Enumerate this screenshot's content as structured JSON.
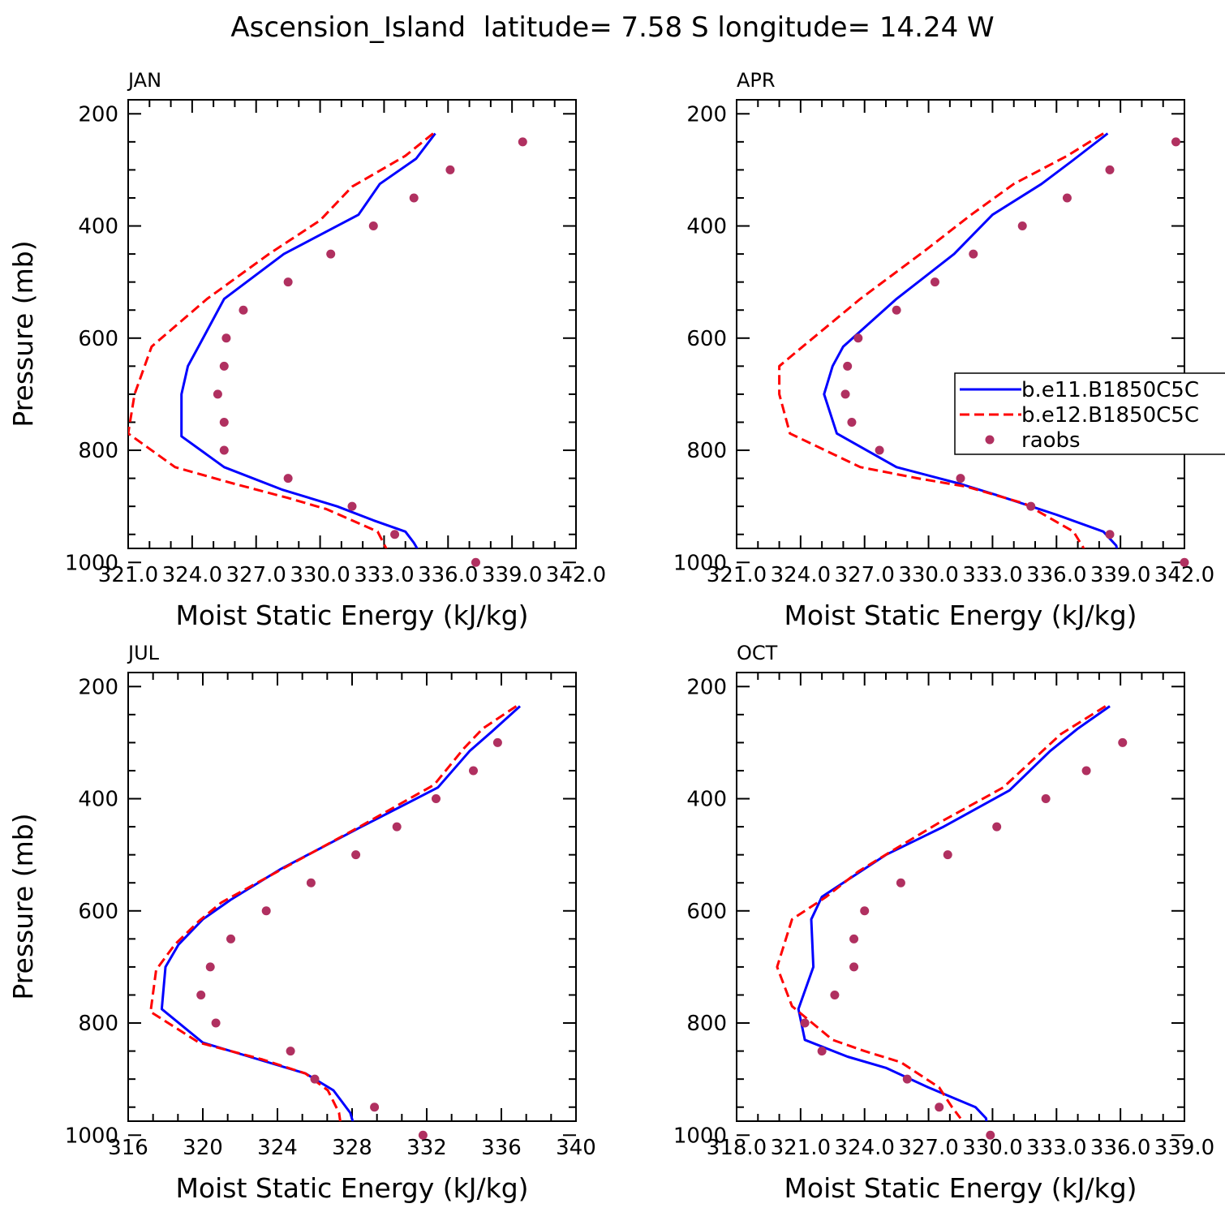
{
  "figure": {
    "title": "Ascension_Island  latitude= 7.58 S longitude= 14.24 W"
  },
  "legend": {
    "entries": [
      {
        "label": "b.e11.B1850C5C",
        "color": "#0000ff",
        "style": "solid"
      },
      {
        "label": "b.e12.B1850C5C",
        "color": "#ff0000",
        "style": "dashed"
      },
      {
        "label": "raobs",
        "color": "#b03060",
        "style": "dots"
      }
    ]
  },
  "chart_data": [
    {
      "type": "line",
      "panel_label": "JAN",
      "xlabel": "Moist Static Energy (kJ/kg)",
      "ylabel": "Pressure (mb)",
      "xlim": [
        321,
        342
      ],
      "ylim": [
        1000,
        200
      ],
      "xtick_labels": [
        "321.0",
        "324.0",
        "327.0",
        "330.0",
        "333.0",
        "336.0",
        "339.0",
        "342.0"
      ],
      "ytick_labels": [
        "200",
        "400",
        "600",
        "800",
        "1000"
      ],
      "series": [
        {
          "name": "b.e11.B1850C5C",
          "x": [
            335.4,
            334.5,
            332.8,
            331.8,
            328.3,
            325.5,
            324.3,
            323.8,
            323.5,
            323.5,
            325.5,
            328.2,
            330.8,
            332.5,
            334.0,
            334.4,
            335.0
          ],
          "y": [
            235,
            280,
            325,
            380,
            450,
            530,
            615,
            650,
            700,
            775,
            830,
            870,
            900,
            925,
            945,
            965,
            1005
          ]
        },
        {
          "name": "b.e12.B1850C5C",
          "x": [
            335.3,
            334.0,
            331.5,
            330.0,
            327.6,
            324.7,
            322.1,
            321.3,
            321.0,
            323.2,
            326.0,
            328.5,
            330.3,
            332.7,
            333.1,
            333.3
          ],
          "y": [
            235,
            275,
            330,
            390,
            450,
            530,
            615,
            700,
            770,
            830,
            860,
            885,
            905,
            945,
            975,
            1007
          ]
        },
        {
          "name": "raobs",
          "x": [
            339.5,
            336.1,
            334.4,
            332.5,
            330.5,
            328.5,
            326.4,
            325.6,
            325.5,
            325.2,
            325.5,
            325.5,
            328.5,
            331.5,
            333.5,
            337.3
          ],
          "y": [
            250,
            300,
            350,
            400,
            450,
            500,
            550,
            600,
            650,
            700,
            750,
            800,
            850,
            900,
            950,
            1000
          ]
        }
      ]
    },
    {
      "type": "line",
      "panel_label": "APR",
      "xlabel": "Moist Static Energy (kJ/kg)",
      "ylabel": "",
      "xlim": [
        321,
        342
      ],
      "ylim": [
        1000,
        200
      ],
      "xtick_labels": [
        "321.0",
        "324.0",
        "327.0",
        "330.0",
        "333.0",
        "336.0",
        "339.0",
        "342.0"
      ],
      "ytick_labels": [
        "200",
        "400",
        "600",
        "800",
        "1000"
      ],
      "series": [
        {
          "name": "b.e11.B1850C5C",
          "x": [
            338.4,
            336.7,
            335.3,
            333.0,
            331.2,
            328.5,
            326.0,
            325.5,
            325.1,
            325.7,
            328.5,
            331.5,
            333.2,
            336.0,
            338.2,
            338.8,
            339.0
          ],
          "y": [
            235,
            285,
            325,
            380,
            450,
            530,
            615,
            650,
            700,
            770,
            830,
            860,
            880,
            915,
            945,
            970,
            1005
          ]
        },
        {
          "name": "b.e12.B1850C5C",
          "x": [
            338.2,
            336.5,
            334.0,
            332.0,
            329.8,
            326.8,
            324.1,
            323.0,
            323.0,
            323.5,
            326.8,
            329.5,
            331.8,
            334.5,
            336.8,
            337.2,
            337.8
          ],
          "y": [
            235,
            275,
            325,
            380,
            445,
            530,
            615,
            650,
            700,
            770,
            830,
            850,
            865,
            895,
            945,
            970,
            1007
          ]
        },
        {
          "name": "raobs",
          "x": [
            341.6,
            338.5,
            336.5,
            334.4,
            332.1,
            330.3,
            328.5,
            326.7,
            326.2,
            326.1,
            326.4,
            327.7,
            331.5,
            334.8,
            338.5,
            342.0
          ],
          "y": [
            250,
            300,
            350,
            400,
            450,
            500,
            550,
            600,
            650,
            700,
            750,
            800,
            850,
            900,
            950,
            1000
          ]
        }
      ]
    },
    {
      "type": "line",
      "panel_label": "JUL",
      "xlabel": "Moist Static Energy (kJ/kg)",
      "ylabel": "Pressure (mb)",
      "xlim": [
        316,
        340
      ],
      "ylim": [
        1000,
        200
      ],
      "xtick_labels": [
        "316",
        "320",
        "324",
        "328",
        "332",
        "336",
        "340"
      ],
      "ytick_labels": [
        "200",
        "400",
        "600",
        "800",
        "1000"
      ],
      "series": [
        {
          "name": "b.e11.B1850C5C",
          "x": [
            337.0,
            335.5,
            334.3,
            332.6,
            328.5,
            324.2,
            321.5,
            320.0,
            318.7,
            318.0,
            317.8,
            320.0,
            323.0,
            325.5,
            327.0,
            327.9,
            328.3
          ],
          "y": [
            235,
            280,
            315,
            380,
            450,
            525,
            580,
            615,
            660,
            700,
            775,
            835,
            865,
            890,
            920,
            960,
            1005
          ]
        },
        {
          "name": "b.e12.B1850C5C",
          "x": [
            336.8,
            335.0,
            334.0,
            332.4,
            328.4,
            324.0,
            321.0,
            319.8,
            318.5,
            317.5,
            317.2,
            319.8,
            323.2,
            325.5,
            326.7,
            327.3,
            327.5
          ],
          "y": [
            235,
            275,
            310,
            375,
            450,
            530,
            585,
            618,
            660,
            705,
            780,
            835,
            865,
            890,
            920,
            960,
            1007
          ]
        },
        {
          "name": "raobs",
          "x": [
            335.8,
            334.5,
            332.5,
            330.4,
            328.2,
            325.8,
            323.4,
            321.5,
            320.4,
            319.9,
            320.7,
            324.7,
            326.0,
            329.2,
            331.8
          ],
          "y": [
            300,
            350,
            400,
            450,
            500,
            550,
            600,
            650,
            700,
            750,
            800,
            850,
            900,
            950,
            1000
          ]
        }
      ]
    },
    {
      "type": "line",
      "panel_label": "OCT",
      "xlabel": "Moist Static Energy (kJ/kg)",
      "ylabel": "",
      "xlim": [
        318,
        339
      ],
      "ylim": [
        1000,
        200
      ],
      "xtick_labels": [
        "318.0",
        "321.0",
        "324.0",
        "327.0",
        "330.0",
        "333.0",
        "336.0",
        "339.0"
      ],
      "ytick_labels": [
        "200",
        "400",
        "600",
        "800",
        "1000"
      ],
      "series": [
        {
          "name": "b.e11.B1850C5C",
          "x": [
            335.5,
            334.0,
            332.7,
            330.8,
            327.7,
            325.0,
            323.8,
            322.0,
            321.5,
            321.6,
            320.9,
            321.2,
            323.2,
            325.0,
            327.0,
            329.2,
            329.7,
            329.8
          ],
          "y": [
            235,
            275,
            315,
            385,
            450,
            500,
            530,
            575,
            615,
            700,
            775,
            830,
            860,
            880,
            915,
            950,
            970,
            1005
          ]
        },
        {
          "name": "b.e12.B1850C5C",
          "x": [
            335.3,
            333.2,
            332.2,
            330.5,
            327.4,
            325.2,
            323.7,
            322.2,
            320.6,
            319.9,
            320.6,
            322.5,
            324.0,
            325.7,
            327.5,
            328.1,
            328.5
          ],
          "y": [
            235,
            285,
            320,
            380,
            445,
            495,
            530,
            575,
            615,
            700,
            770,
            830,
            850,
            870,
            915,
            950,
            970
          ]
        },
        {
          "name": "raobs",
          "x": [
            336.1,
            334.4,
            332.5,
            330.2,
            327.9,
            325.7,
            324.0,
            323.5,
            323.5,
            322.6,
            321.2,
            322.0,
            326.0,
            327.5,
            329.9
          ],
          "y": [
            300,
            350,
            400,
            450,
            500,
            550,
            600,
            650,
            700,
            750,
            800,
            850,
            900,
            950,
            1000
          ]
        }
      ]
    }
  ]
}
